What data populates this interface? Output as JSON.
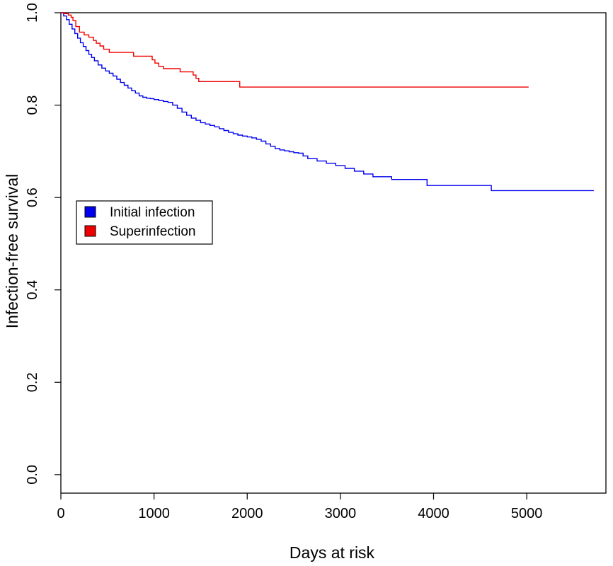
{
  "chart_data": {
    "type": "line",
    "title": "",
    "xlabel": "Days at risk",
    "ylabel": "Infection-free survival",
    "xlim": [
      0,
      5850
    ],
    "ylim": [
      -0.04,
      1.0
    ],
    "x_ticks": [
      0,
      1000,
      2000,
      3000,
      4000,
      5000
    ],
    "y_ticks": [
      0.0,
      0.2,
      0.4,
      0.6,
      0.8,
      1.0
    ],
    "x_tick_labels": [
      "0",
      "1000",
      "2000",
      "3000",
      "4000",
      "5000"
    ],
    "y_tick_labels": [
      "0.0",
      "0.2",
      "0.4",
      "0.6",
      "0.8",
      "1.0"
    ],
    "grid": false,
    "legend_position": "middle-left",
    "step": true,
    "series": [
      {
        "name": "Initial infection",
        "color": "#0000ee",
        "x": [
          0,
          30,
          60,
          90,
          120,
          150,
          180,
          210,
          240,
          270,
          300,
          330,
          360,
          400,
          440,
          480,
          520,
          560,
          600,
          640,
          680,
          720,
          760,
          800,
          840,
          880,
          920,
          960,
          1000,
          1050,
          1100,
          1150,
          1200,
          1250,
          1300,
          1350,
          1400,
          1450,
          1500,
          1550,
          1600,
          1650,
          1700,
          1750,
          1800,
          1850,
          1900,
          1950,
          2000,
          2050,
          2100,
          2150,
          2200,
          2250,
          2300,
          2350,
          2400,
          2450,
          2500,
          2550,
          2600,
          2650,
          2750,
          2850,
          2950,
          3050,
          3150,
          3250,
          3350,
          3550,
          3930,
          4620,
          5720
        ],
        "y": [
          1.0,
          0.993,
          0.985,
          0.975,
          0.965,
          0.955,
          0.945,
          0.935,
          0.927,
          0.918,
          0.91,
          0.903,
          0.896,
          0.887,
          0.88,
          0.874,
          0.869,
          0.863,
          0.856,
          0.849,
          0.843,
          0.837,
          0.831,
          0.826,
          0.82,
          0.817,
          0.815,
          0.814,
          0.812,
          0.81,
          0.808,
          0.806,
          0.8,
          0.793,
          0.785,
          0.778,
          0.772,
          0.767,
          0.762,
          0.759,
          0.756,
          0.753,
          0.749,
          0.745,
          0.741,
          0.738,
          0.735,
          0.733,
          0.731,
          0.729,
          0.726,
          0.722,
          0.716,
          0.711,
          0.706,
          0.703,
          0.701,
          0.699,
          0.697,
          0.696,
          0.69,
          0.684,
          0.679,
          0.674,
          0.669,
          0.663,
          0.657,
          0.651,
          0.645,
          0.639,
          0.626,
          0.615,
          0.615
        ]
      },
      {
        "name": "Superinfection",
        "color": "#ee0000",
        "x": [
          0,
          40,
          80,
          110,
          130,
          160,
          200,
          250,
          300,
          350,
          380,
          420,
          460,
          520,
          600,
          680,
          780,
          860,
          920,
          980,
          1010,
          1050,
          1100,
          1180,
          1280,
          1330,
          1420,
          1450,
          1480,
          1550,
          1680,
          1800,
          1920,
          2050,
          5020
        ],
        "y": [
          1.0,
          0.998,
          0.995,
          0.99,
          0.983,
          0.97,
          0.958,
          0.952,
          0.947,
          0.94,
          0.934,
          0.928,
          0.921,
          0.914,
          0.914,
          0.914,
          0.906,
          0.906,
          0.906,
          0.898,
          0.891,
          0.884,
          0.879,
          0.879,
          0.872,
          0.872,
          0.865,
          0.858,
          0.851,
          0.851,
          0.851,
          0.851,
          0.839,
          0.839,
          0.839
        ]
      }
    ]
  }
}
